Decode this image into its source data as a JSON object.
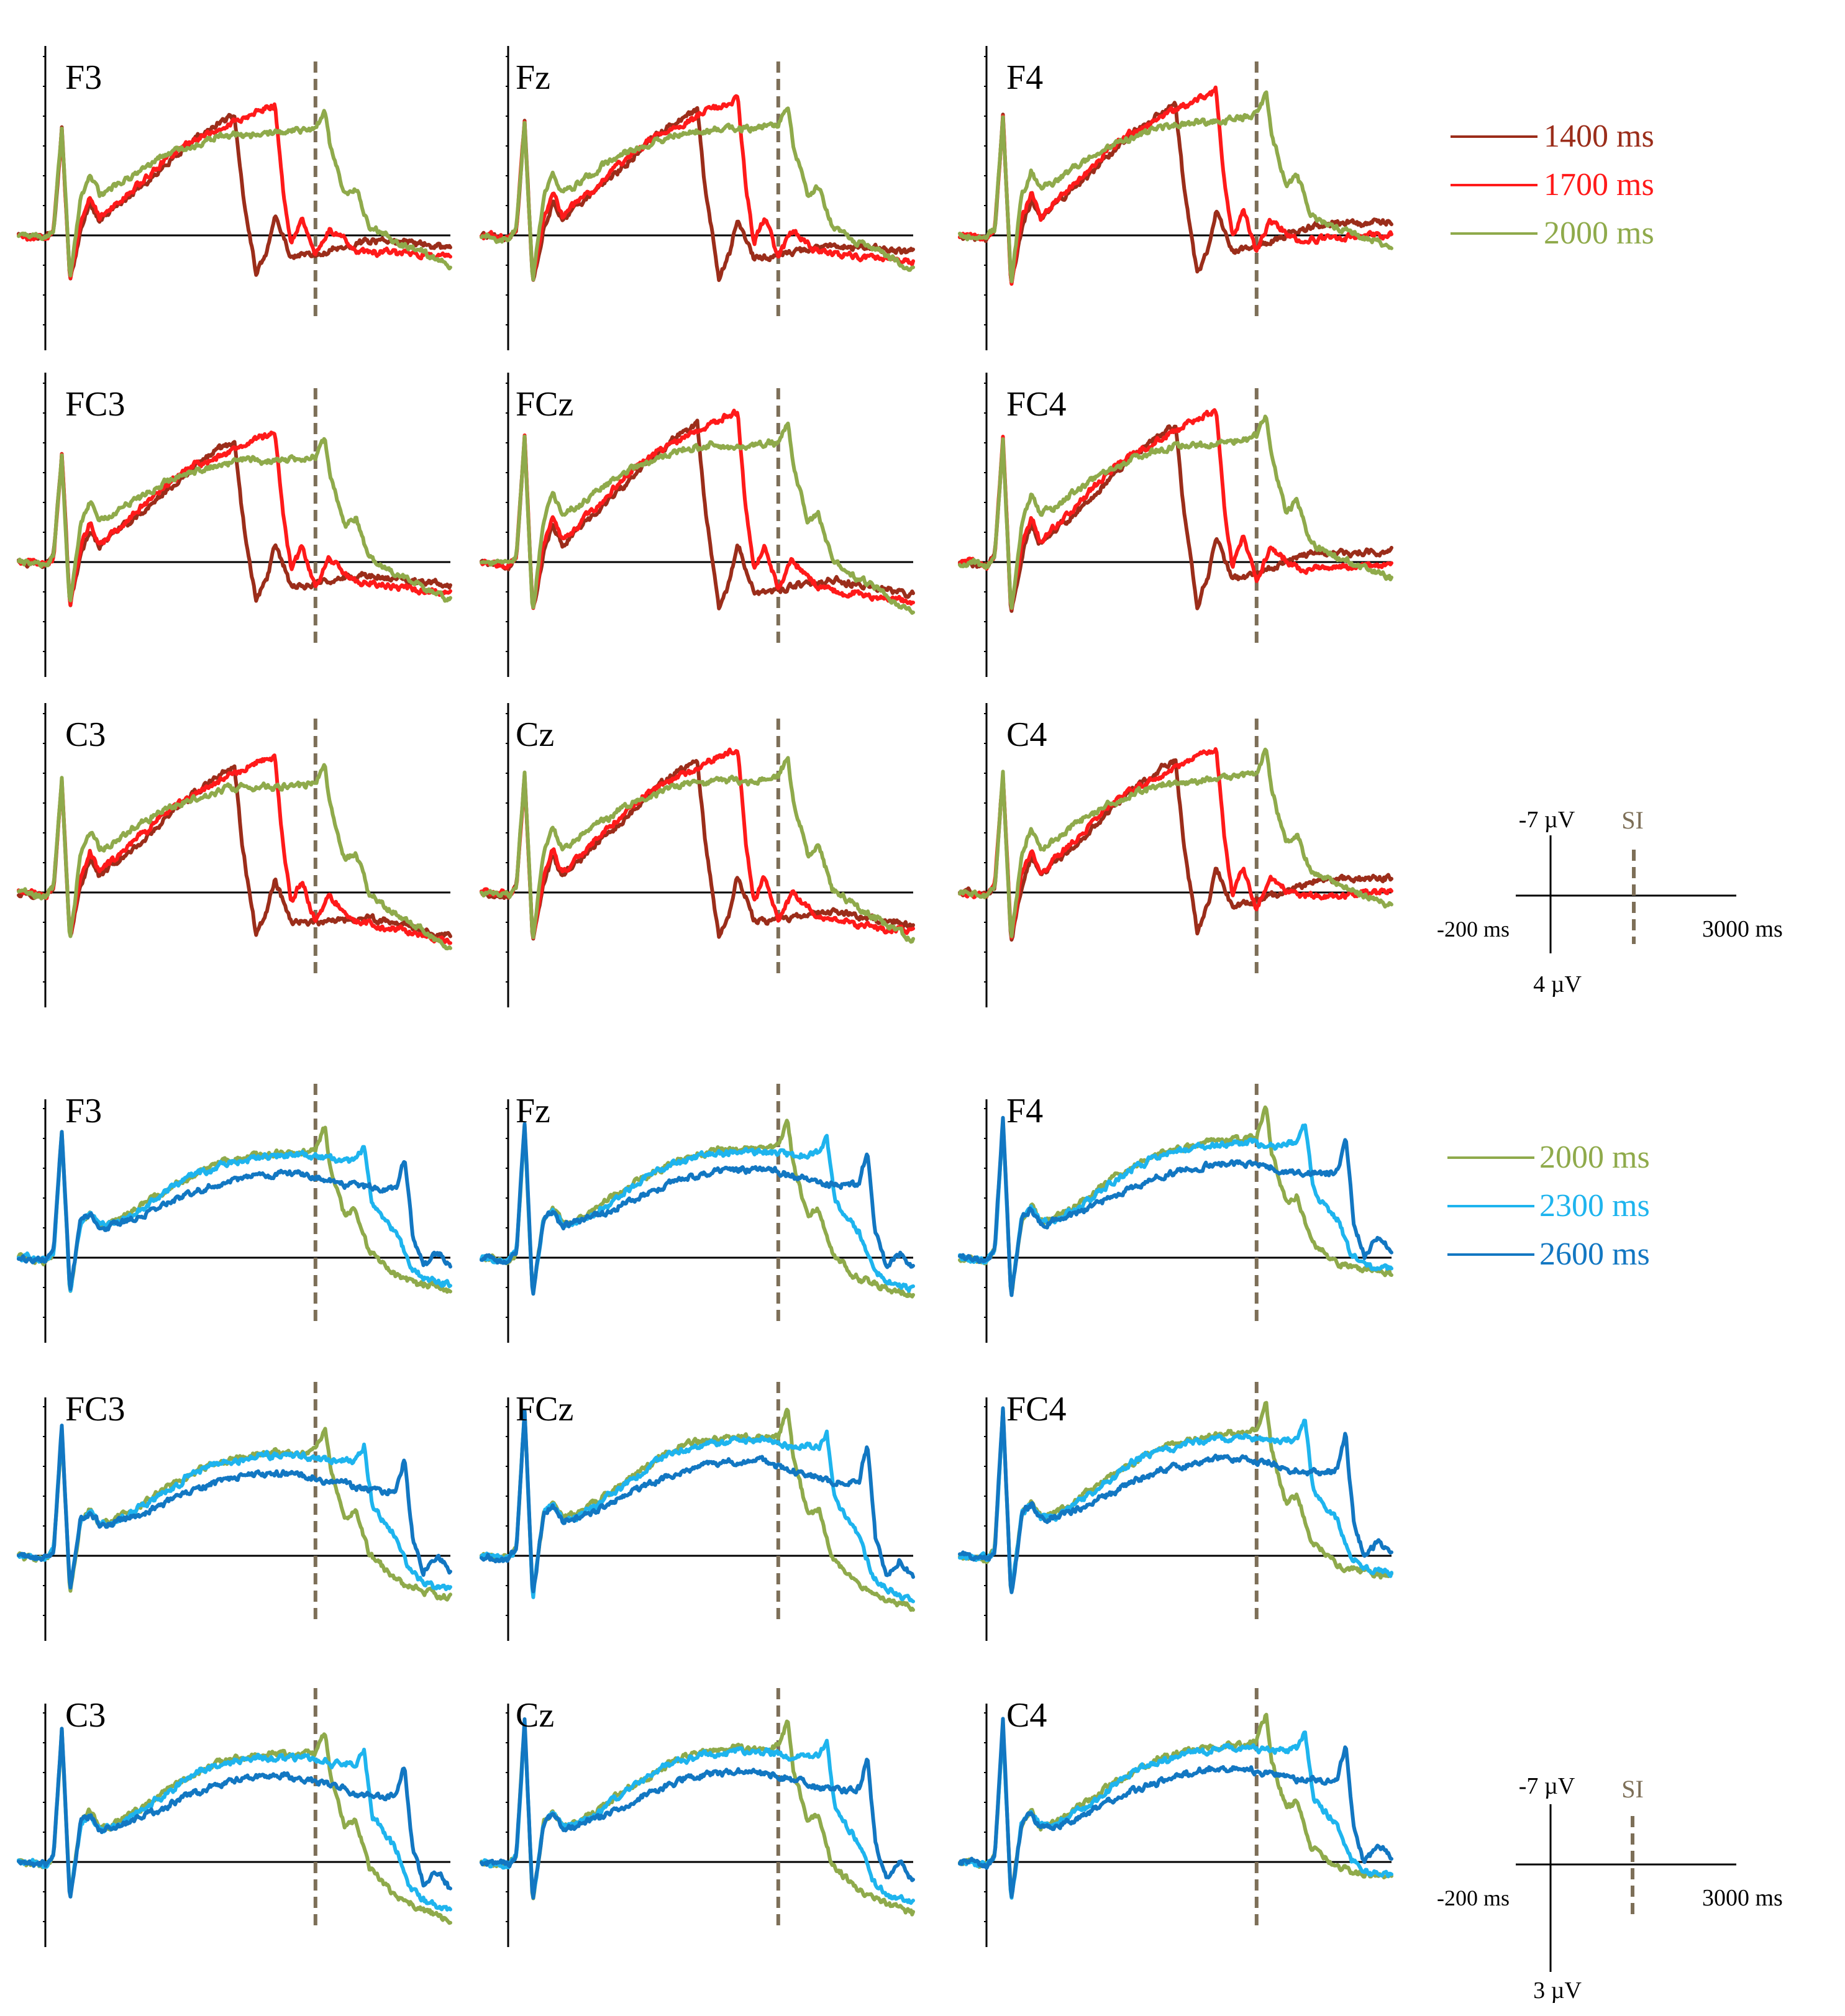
{
  "colors": {
    "c1400": "#9B2D1A",
    "c1700": "#FF1A1A",
    "c2000": "#8FAA4B",
    "c2300": "#1EB4EE",
    "c2600": "#1277C2",
    "si_marker": "#7D6F58",
    "axis": "#000000"
  },
  "chart_data": [
    {
      "type": "line",
      "title": "",
      "xlabel": "",
      "ylabel": "",
      "x_range_ms": [
        -200,
        3000
      ],
      "y_range_uV": [
        -7,
        4
      ],
      "si_marker_ms": 2000,
      "scale_legend": {
        "y_top": "-7 µV",
        "y_bottom": "4 µV",
        "x_left": "-200 ms",
        "x_right": "3000 ms",
        "marker": "SI"
      },
      "legend": [
        {
          "label": "1400 ms",
          "color": "#9B2D1A"
        },
        {
          "label": "1700 ms",
          "color": "#FF1A1A"
        },
        {
          "label": "2000 ms",
          "color": "#8FAA4B"
        }
      ],
      "electrodes": [
        "F3",
        "Fz",
        "F4",
        "FC3",
        "FCz",
        "FC4",
        "C3",
        "Cz",
        "C4"
      ],
      "series": [
        {
          "name": "1400 ms",
          "interval_ms": 1400,
          "shape": [
            [
              -200,
              0
            ],
            [
              0,
              0.1
            ],
            [
              60,
              -0.2
            ],
            [
              120,
              -3.6
            ],
            [
              180,
              1.5
            ],
            [
              260,
              -0.2
            ],
            [
              330,
              -1.1
            ],
            [
              400,
              -0.5
            ],
            [
              500,
              -0.9
            ],
            [
              700,
              -1.6
            ],
            [
              900,
              -2.4
            ],
            [
              1100,
              -3.2
            ],
            [
              1300,
              -3.8
            ],
            [
              1400,
              -4.0
            ],
            [
              1460,
              -1.5
            ],
            [
              1560,
              1.3
            ],
            [
              1640,
              0.5
            ],
            [
              1700,
              -0.6
            ],
            [
              1820,
              0.7
            ],
            [
              2000,
              0.6
            ],
            [
              2400,
              0.2
            ],
            [
              3000,
              0.4
            ]
          ]
        },
        {
          "name": "1700 ms",
          "interval_ms": 1700,
          "shape": [
            [
              -200,
              0
            ],
            [
              0,
              0.1
            ],
            [
              60,
              -0.2
            ],
            [
              120,
              -3.6
            ],
            [
              180,
              1.5
            ],
            [
              260,
              -0.5
            ],
            [
              330,
              -1.3
            ],
            [
              400,
              -0.6
            ],
            [
              500,
              -1.0
            ],
            [
              700,
              -1.8
            ],
            [
              900,
              -2.6
            ],
            [
              1100,
              -3.2
            ],
            [
              1300,
              -3.6
            ],
            [
              1500,
              -4.0
            ],
            [
              1700,
              -4.4
            ],
            [
              1760,
              -1.6
            ],
            [
              1820,
              0.2
            ],
            [
              1900,
              -0.6
            ],
            [
              2000,
              0.7
            ],
            [
              2100,
              -0.2
            ],
            [
              2300,
              0.5
            ],
            [
              2600,
              0.6
            ],
            [
              3000,
              0.7
            ]
          ]
        },
        {
          "name": "2000 ms",
          "interval_ms": 2000,
          "shape": [
            [
              -200,
              0
            ],
            [
              0,
              0.1
            ],
            [
              60,
              -0.2
            ],
            [
              120,
              -3.6
            ],
            [
              180,
              1.5
            ],
            [
              260,
              -1.2
            ],
            [
              330,
              -2.0
            ],
            [
              400,
              -1.4
            ],
            [
              500,
              -1.6
            ],
            [
              700,
              -2.2
            ],
            [
              900,
              -2.7
            ],
            [
              1100,
              -3.0
            ],
            [
              1300,
              -3.3
            ],
            [
              1500,
              -3.4
            ],
            [
              1700,
              -3.4
            ],
            [
              1900,
              -3.5
            ],
            [
              2000,
              -3.6
            ],
            [
              2070,
              -4.2
            ],
            [
              2110,
              -3.0
            ],
            [
              2220,
              -1.3
            ],
            [
              2300,
              -1.6
            ],
            [
              2400,
              -0.3
            ],
            [
              2600,
              0.2
            ],
            [
              2800,
              0.6
            ],
            [
              3000,
              1.0
            ]
          ]
        }
      ]
    },
    {
      "type": "line",
      "title": "",
      "xlabel": "",
      "ylabel": "",
      "x_range_ms": [
        -200,
        3000
      ],
      "y_range_uV": [
        -7,
        3
      ],
      "si_marker_ms": 2000,
      "scale_legend": {
        "y_top": "-7 µV",
        "y_bottom": "3 µV",
        "x_left": "-200 ms",
        "x_right": "3000 ms",
        "marker": "SI"
      },
      "legend": [
        {
          "label": "2000 ms",
          "color": "#8FAA4B"
        },
        {
          "label": "2300 ms",
          "color": "#1EB4EE"
        },
        {
          "label": "2600 ms",
          "color": "#1277C2"
        }
      ],
      "electrodes": [
        "F3",
        "Fz",
        "F4",
        "FC3",
        "FCz",
        "FC4",
        "C3",
        "Cz",
        "C4"
      ],
      "series": [
        {
          "name": "2000 ms",
          "interval_ms": 2000,
          "shape": [
            [
              -200,
              0
            ],
            [
              0,
              0.1
            ],
            [
              60,
              -0.2
            ],
            [
              120,
              -4.2
            ],
            [
              180,
              1.2
            ],
            [
              260,
              -1.2
            ],
            [
              330,
              -1.6
            ],
            [
              400,
              -1.1
            ],
            [
              500,
              -1.2
            ],
            [
              700,
              -1.7
            ],
            [
              900,
              -2.3
            ],
            [
              1100,
              -2.8
            ],
            [
              1300,
              -3.2
            ],
            [
              1500,
              -3.4
            ],
            [
              1700,
              -3.5
            ],
            [
              1900,
              -3.5
            ],
            [
              2000,
              -3.6
            ],
            [
              2070,
              -4.4
            ],
            [
              2110,
              -3.0
            ],
            [
              2220,
              -1.4
            ],
            [
              2300,
              -1.6
            ],
            [
              2400,
              -0.2
            ],
            [
              2600,
              0.6
            ],
            [
              2800,
              0.9
            ],
            [
              3000,
              1.1
            ]
          ]
        },
        {
          "name": "2300 ms",
          "interval_ms": 2300,
          "shape": [
            [
              -200,
              0
            ],
            [
              0,
              0.1
            ],
            [
              60,
              -0.2
            ],
            [
              120,
              -4.2
            ],
            [
              180,
              1.2
            ],
            [
              260,
              -1.2
            ],
            [
              330,
              -1.5
            ],
            [
              400,
              -1.1
            ],
            [
              500,
              -1.1
            ],
            [
              700,
              -1.6
            ],
            [
              900,
              -2.2
            ],
            [
              1100,
              -2.8
            ],
            [
              1300,
              -3.1
            ],
            [
              1500,
              -3.3
            ],
            [
              1700,
              -3.4
            ],
            [
              1900,
              -3.4
            ],
            [
              2100,
              -3.3
            ],
            [
              2300,
              -3.3
            ],
            [
              2360,
              -3.8
            ],
            [
              2420,
              -1.8
            ],
            [
              2520,
              -1.2
            ],
            [
              2600,
              -0.8
            ],
            [
              2700,
              0.3
            ],
            [
              2800,
              0.7
            ],
            [
              3000,
              0.9
            ]
          ]
        },
        {
          "name": "2600 ms",
          "interval_ms": 2600,
          "shape": [
            [
              -200,
              0
            ],
            [
              0,
              0.1
            ],
            [
              60,
              -0.2
            ],
            [
              120,
              -4.3
            ],
            [
              180,
              1.2
            ],
            [
              260,
              -1.2
            ],
            [
              330,
              -1.5
            ],
            [
              400,
              -1.0
            ],
            [
              500,
              -1.1
            ],
            [
              700,
              -1.4
            ],
            [
              900,
              -1.8
            ],
            [
              1100,
              -2.2
            ],
            [
              1300,
              -2.5
            ],
            [
              1500,
              -2.7
            ],
            [
              1700,
              -2.8
            ],
            [
              1900,
              -2.8
            ],
            [
              2100,
              -2.6
            ],
            [
              2300,
              -2.4
            ],
            [
              2500,
              -2.3
            ],
            [
              2600,
              -2.4
            ],
            [
              2660,
              -3.4
            ],
            [
              2720,
              -0.8
            ],
            [
              2800,
              0.3
            ],
            [
              2900,
              -0.2
            ],
            [
              3000,
              0.3
            ]
          ]
        }
      ]
    }
  ],
  "electrode_adjust": {
    "F3": [
      1.0,
      0.0,
      0.0
    ],
    "Fz": [
      1.05,
      0.0,
      0.1
    ],
    "F4": [
      1.1,
      -0.4,
      -0.3
    ],
    "FC3": [
      1.0,
      0.2,
      0.1
    ],
    "FCz": [
      1.15,
      0.3,
      0.2
    ],
    "FC4": [
      1.15,
      -0.2,
      -0.4
    ],
    "C3": [
      1.05,
      0.4,
      0.4
    ],
    "Cz": [
      1.1,
      0.2,
      0.3
    ],
    "C4": [
      1.1,
      -0.3,
      -0.4
    ]
  }
}
